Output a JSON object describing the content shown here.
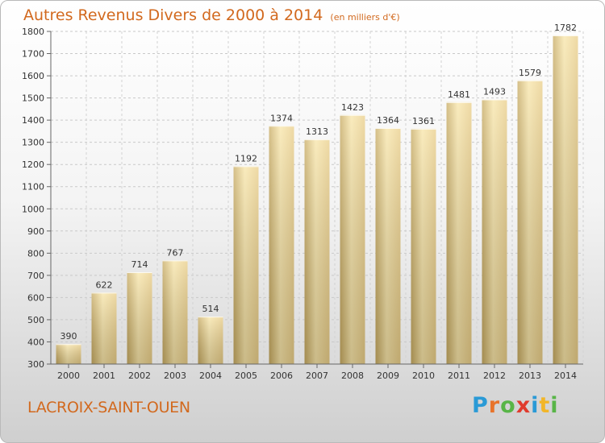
{
  "title": "Autres Revenus Divers de 2000 à 2014",
  "unit": "(en milliers d'€)",
  "commune": "LACROIX-SAINT-OUEN",
  "brand": {
    "text": "Proxiti",
    "letters": [
      {
        "ch": "P",
        "color": "#2a9ad6"
      },
      {
        "ch": "r",
        "color": "#e8732a"
      },
      {
        "ch": "o",
        "color": "#58b547"
      },
      {
        "ch": "x",
        "color": "#e03b2d"
      },
      {
        "ch": "i",
        "color": "#2a9ad6"
      },
      {
        "ch": "t",
        "color": "#f2b629"
      },
      {
        "ch": "i",
        "color": "#58b547"
      }
    ]
  },
  "chart_data": {
    "type": "bar",
    "categories": [
      "2000",
      "2001",
      "2002",
      "2003",
      "2004",
      "2005",
      "2006",
      "2007",
      "2008",
      "2009",
      "2010",
      "2011",
      "2012",
      "2013",
      "2014"
    ],
    "values": [
      390,
      622,
      714,
      767,
      514,
      1192,
      1374,
      1313,
      1423,
      1364,
      1361,
      1481,
      1493,
      1579,
      1782
    ],
    "ylim": [
      300,
      1800
    ],
    "yticks": [
      300,
      400,
      500,
      600,
      700,
      800,
      900,
      1000,
      1100,
      1200,
      1300,
      1400,
      1500,
      1600,
      1700,
      1800
    ],
    "grid": true,
    "bar_color": "#e9cd87",
    "bar_highlight": "#f8e5a8",
    "bar_shadow": "#c7aa61"
  }
}
